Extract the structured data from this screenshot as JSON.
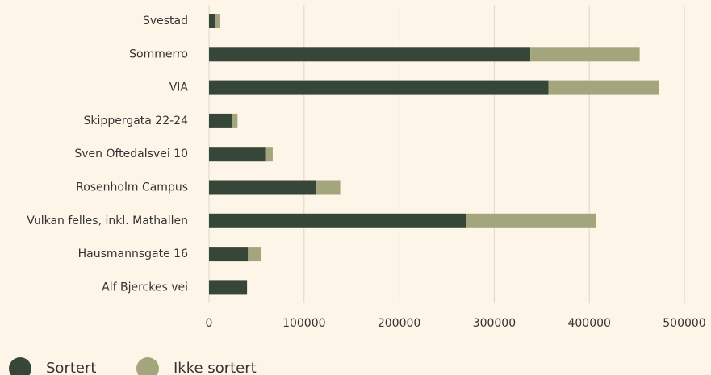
{
  "chart_data": {
    "type": "stacked-barh",
    "categories": [
      "Svestad",
      "Sommerro",
      "VIA",
      "Skippergata 22-24",
      "Sven Oftedalsvei 10",
      "Rosenholm Campus",
      "Vulkan felles, inkl. Mathallen",
      "Hausmannsgate 16",
      "Alf Bjerckes vei"
    ],
    "series": [
      {
        "name": "Sortert",
        "color": "#36473a",
        "values": [
          7000,
          338000,
          357000,
          24000,
          59000,
          113000,
          271000,
          41000,
          40000
        ]
      },
      {
        "name": "Ikke sortert",
        "color": "#a3a57c",
        "values": [
          4000,
          115000,
          116000,
          6000,
          8000,
          25000,
          136000,
          14000,
          0
        ]
      }
    ],
    "xlim": [
      0,
      500000
    ],
    "xticks": [
      0,
      100000,
      200000,
      300000,
      400000,
      500000
    ],
    "grid": true,
    "legend": "bottom-left"
  }
}
